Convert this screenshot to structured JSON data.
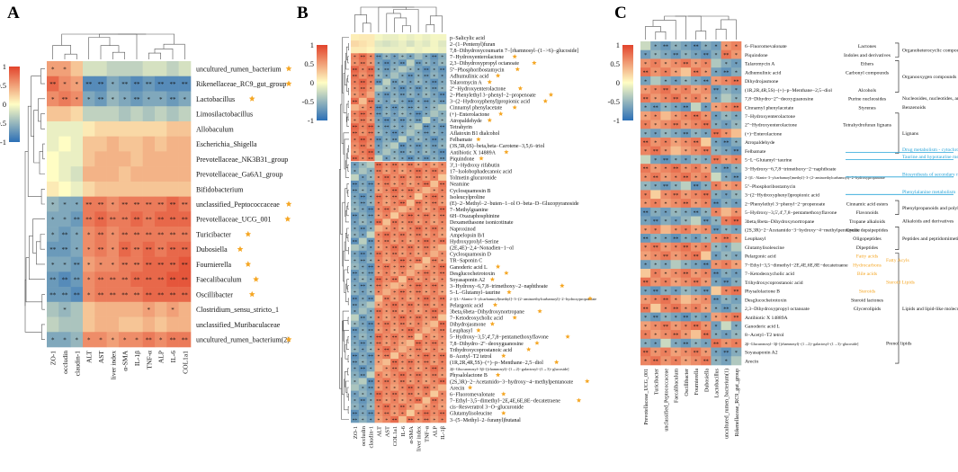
{
  "colors": {
    "low": "#2c6fb6",
    "mid": "#fffdc4",
    "high": "#e2432c",
    "star": "#f5a623",
    "cyan": "#27a3d8",
    "orange": "#f5a623",
    "tree": "#555555",
    "text": "#111111"
  },
  "chart_data": [
    {
      "panel": "A",
      "type": "heatmap",
      "legend_ticks": [
        "1",
        "0.5",
        "0",
        "-0.5",
        "-1"
      ],
      "columns": [
        "ZO-1",
        "occludin",
        "claudin-1",
        "ALT",
        "AST",
        "liver index",
        "α-SMA",
        "IL-1β",
        "TNF-α",
        "ALP",
        "IL-6",
        "COL1a1"
      ],
      "rows": [
        {
          "name": "uncultured_rumen_bacterium",
          "star": true
        },
        {
          "name": "Rikenellaceae_RC9_gut_group",
          "star": true
        },
        {
          "name": "Lactobacillus",
          "star": true
        },
        {
          "name": "Limosilactobacillus",
          "star": false
        },
        {
          "name": "Allobaculum",
          "star": false
        },
        {
          "name": "Escherichia_Shigella",
          "star": false
        },
        {
          "name": "Prevotellaceae_NK3B31_group",
          "star": false
        },
        {
          "name": "Prevotellaceae_Ga6A1_group",
          "star": false
        },
        {
          "name": "Bifidobacterium",
          "star": false
        },
        {
          "name": "unclassified_Peptococcaceae",
          "star": true
        },
        {
          "name": "Prevotellaceae_UCG_001",
          "star": true
        },
        {
          "name": "Turicibacter",
          "star": true
        },
        {
          "name": "Dubosiella",
          "star": true
        },
        {
          "name": "Fournierella",
          "star": true
        },
        {
          "name": "Faecalibaculum",
          "star": true
        },
        {
          "name": "Oscillibacter",
          "star": true
        },
        {
          "name": "Clostridium_sensu_stricto_1",
          "star": false
        },
        {
          "name": "unclassified_Muribaculaceae",
          "star": false
        },
        {
          "name": "uncultured_rumen_bacterium(2)",
          "star": true
        }
      ],
      "values": [
        [
          0.5,
          0.5,
          0.3,
          -0.2,
          -0.2,
          -0.3,
          -0.3,
          -0.3,
          -0.2,
          -0.2,
          -0.3,
          -0.2
        ],
        [
          0.8,
          0.6,
          0.5,
          -0.8,
          -0.8,
          -0.6,
          -0.7,
          -0.8,
          -0.7,
          -0.8,
          -0.8,
          -0.8
        ],
        [
          0.6,
          0.7,
          0.6,
          -0.6,
          -0.7,
          -0.5,
          -0.6,
          -0.7,
          -0.6,
          -0.6,
          -0.7,
          -0.6
        ],
        [
          0.3,
          0.3,
          0.2,
          -0.3,
          -0.3,
          -0.3,
          -0.4,
          -0.3,
          -0.4,
          -0.3,
          -0.4,
          -0.3
        ],
        [
          -0.1,
          -0.1,
          -0.1,
          0.1,
          0.2,
          0.2,
          0.2,
          0.2,
          0.2,
          0.2,
          0.3,
          0.3
        ],
        [
          -0.1,
          0.0,
          -0.1,
          0.3,
          0.3,
          0.4,
          0.3,
          0.3,
          0.4,
          0.3,
          0.4,
          0.4
        ],
        [
          0.0,
          -0.1,
          -0.1,
          0.3,
          0.4,
          0.4,
          0.4,
          0.3,
          0.4,
          0.4,
          0.4,
          0.4
        ],
        [
          0.0,
          -0.1,
          -0.2,
          0.4,
          0.4,
          0.4,
          0.3,
          0.4,
          0.4,
          0.4,
          0.4,
          0.4
        ],
        [
          0.1,
          0.0,
          -0.1,
          0.2,
          0.3,
          0.3,
          0.3,
          0.3,
          0.3,
          0.3,
          0.3,
          0.3
        ],
        [
          -0.5,
          -0.6,
          -0.6,
          0.7,
          0.7,
          0.6,
          0.7,
          0.7,
          0.7,
          0.7,
          0.8,
          0.7
        ],
        [
          -0.6,
          -0.6,
          -0.7,
          0.7,
          0.8,
          0.7,
          0.7,
          0.8,
          0.7,
          0.8,
          0.8,
          0.8
        ],
        [
          -0.6,
          -0.7,
          -0.6,
          0.6,
          0.7,
          0.6,
          0.7,
          0.7,
          0.7,
          0.7,
          0.7,
          0.7
        ],
        [
          -0.7,
          -0.7,
          -0.6,
          0.6,
          0.7,
          0.6,
          0.8,
          0.7,
          0.8,
          0.7,
          0.8,
          0.8
        ],
        [
          -0.6,
          -0.6,
          -0.7,
          0.5,
          0.6,
          0.6,
          0.7,
          0.7,
          0.8,
          0.8,
          0.8,
          0.9
        ],
        [
          -0.7,
          -0.8,
          -0.7,
          0.6,
          0.7,
          0.7,
          0.7,
          0.8,
          0.8,
          0.8,
          0.9,
          0.9
        ],
        [
          -0.7,
          -0.7,
          -0.8,
          0.6,
          0.7,
          0.7,
          0.7,
          0.7,
          0.8,
          0.8,
          0.8,
          0.8
        ],
        [
          -0.4,
          -0.5,
          -0.4,
          0.3,
          0.4,
          0.4,
          0.4,
          0.4,
          0.5,
          0.4,
          0.5,
          0.4
        ],
        [
          -0.3,
          -0.4,
          -0.4,
          0.3,
          0.4,
          0.4,
          0.3,
          0.3,
          0.4,
          0.3,
          0.4,
          0.4
        ],
        [
          -0.6,
          -0.6,
          -0.5,
          0.6,
          0.6,
          0.5,
          0.6,
          0.6,
          0.7,
          0.6,
          0.7,
          0.7
        ]
      ]
    },
    {
      "panel": "B",
      "type": "heatmap",
      "legend_ticks": [
        "1",
        "0.5",
        "0",
        "-0.5",
        "-1"
      ],
      "columns": [
        "ZO-1",
        "occludin",
        "claudin-1",
        "ALT",
        "AST",
        "COL1a1",
        "IL-6",
        "α-SMA",
        "liver index",
        "TNF-α",
        "ALP",
        "IL-1β"
      ],
      "rows": [
        {
          "name": "p−Salicylic acid",
          "star": false
        },
        {
          "name": "2−(1−Pentenyl)furan",
          "star": false
        },
        {
          "name": "7,8−Dihydroxycoumarin 7−[rhamnosyl−(1−>6)−glucoside]",
          "star": false
        },
        {
          "name": "7−Hydroxyenterolactone",
          "star": true
        },
        {
          "name": "2,3−Dihydroxypropyl octanoate",
          "star": true
        },
        {
          "name": "5''−Phosphoribostamycin",
          "star": true
        },
        {
          "name": "Adhumulinic acid",
          "star": true
        },
        {
          "name": "Talaromycin A",
          "star": true
        },
        {
          "name": "2''−Hydroxyenterolactone",
          "star": true
        },
        {
          "name": "2−Phenylethyl 3−phenyl−2−propenoate",
          "star": true
        },
        {
          "name": "3−(2−Hydroxyphenyl)propionic acid",
          "star": true
        },
        {
          "name": "Cinnamyl phenylacetate",
          "star": true
        },
        {
          "name": "(+)−Enterolactone",
          "star": true
        },
        {
          "name": "Atropaldehyde",
          "star": true
        },
        {
          "name": "Tetrahyrin",
          "star": false
        },
        {
          "name": "Aflatoxin B1 dialcohol",
          "star": false
        },
        {
          "name": "Felbamate",
          "star": true
        },
        {
          "name": "(3S,5R,6S)−beta,beta−Carotene−3,5,6−triol",
          "star": false
        },
        {
          "name": "Antibiotic X 14889A",
          "star": true
        },
        {
          "name": "Piquindone",
          "star": true
        },
        {
          "name": "3',1−Hydroxy rifabutin",
          "star": false
        },
        {
          "name": "17−Isolobophadecanoic acid",
          "star": false
        },
        {
          "name": "Tolmetin glucuronide",
          "star": false
        },
        {
          "name": "Neamine",
          "star": false
        },
        {
          "name": "Cyclosquamosin B",
          "star": false
        },
        {
          "name": "Isoleucylproline",
          "star": false
        },
        {
          "name": "(E)−2−Methyl−2−buten−1−ol O−beta−D−Glucopyranoside",
          "star": false
        },
        {
          "name": "7−Methylguanine",
          "star": false
        },
        {
          "name": "6H−Oxazaphosphinine",
          "star": false
        },
        {
          "name": "Dexamethasone isonicotinate",
          "star": false
        },
        {
          "name": "Naproxinod",
          "star": false
        },
        {
          "name": "Ampelopsin B/I",
          "star": false
        },
        {
          "name": "Hydroxyprolyl−Serine",
          "star": false
        },
        {
          "name": "(2E,4E)−2,4−Nonadien−1−ol",
          "star": false
        },
        {
          "name": "Cyclosquamosin D",
          "star": false
        },
        {
          "name": "TR−Saponin C",
          "star": false
        },
        {
          "name": "Ganoderic acid L",
          "star": true
        },
        {
          "name": "Desglucocheirotoxin",
          "star": true
        },
        {
          "name": "Soyasaponin A2",
          "star": true
        },
        {
          "name": "3−Hydroxy−6,7,8−trimethoxy−2−naphthoate",
          "star": true
        },
        {
          "name": "5−L−Glutamyl−taurine",
          "star": true
        },
        {
          "name": "2−[(L−Alanin−3−ylcarbamoyl)methyl]−3−(2−aminoethylcarbamoyl)−2−hydroxypropanoate",
          "star": true
        },
        {
          "name": "Pelargonic acid",
          "star": true
        },
        {
          "name": "3beta,6beta−Dihydroxynortropane",
          "star": true
        },
        {
          "name": "7−Ketodeoxycholic acid",
          "star": true
        },
        {
          "name": "Dihydrojasmone",
          "star": true
        },
        {
          "name": "Leuphasyl",
          "star": true
        },
        {
          "name": "5−Hydroxy−3,5',4',7,8−pentamethoxyflavone",
          "star": true
        },
        {
          "name": "7,8−Dihydro−2''−deoxyguanosine",
          "star": true
        },
        {
          "name": "Trihydroxycoprostanoic acid",
          "star": true
        },
        {
          "name": "8−Acetyl−T2 tetrol",
          "star": true
        },
        {
          "name": "(1R,2R,4R,5S)−(+)−p−Menthane−2,5−diol",
          "star": true
        },
        {
          "name": "2β−Glucuronosyl−3β−[(rhamnosyl)−(1→2)−galactosyl−(1→3)−glucoside]",
          "star": false
        },
        {
          "name": "Physalolactone B",
          "star": true
        },
        {
          "name": "(2S,3R)−2−Acetamido−3−hydroxy−4−methylpentanoate",
          "star": true
        },
        {
          "name": "Arecin",
          "star": true
        },
        {
          "name": "6−Fluoromevalonate",
          "star": true
        },
        {
          "name": "7−Ethyl−3,5−dimethyl−2E,4E,6E,8E−decatetraene",
          "star": true
        },
        {
          "name": "cis−Resveratrol 3−O−glucuronide",
          "star": false
        },
        {
          "name": "Glutamylisoleucine",
          "star": true
        },
        {
          "name": "3−(5−Methyl−2−furanyl)butanal",
          "star": false
        }
      ]
    },
    {
      "panel": "C",
      "type": "heatmap",
      "legend_ticks": [
        "1",
        "0.5",
        "0",
        "-0.5",
        "-1"
      ],
      "columns": [
        "Prevotellaceae_UCG_001",
        "Turicibacter",
        "unclassified_Peptococcaceae",
        "Faecalibaculum",
        "Oscillibacter",
        "Fournierella",
        "Dubosiella",
        "Lactobacillus",
        "uncultured_rumen_bacterium(1)",
        "Rikenellaceae_RC9_gut_group"
      ],
      "rows": [
        {
          "name": "6−Fluoromevalonate",
          "class": "Lactones"
        },
        {
          "name": "Piquindone",
          "class": "Indoles and derivatives"
        },
        {
          "name": "Talaromycin A",
          "class": "Ethers"
        },
        {
          "name": "Adhumulinic acid",
          "class": "Carbonyl compounds"
        },
        {
          "name": "Dihydrojasmone",
          "class": ""
        },
        {
          "name": "(1R,2R,4R,5S)−(+)−p−Menthane−2,5−diol",
          "class": "Alcohols"
        },
        {
          "name": "7,8−Dihydro−2''−deoxyguanosine",
          "class": "Purine nucleosides"
        },
        {
          "name": "Cinnamyl phenylacetate",
          "class": "Styrenes"
        },
        {
          "name": "7−Hydroxyenterolactone",
          "class": ""
        },
        {
          "name": "2''−Hydroxyenterolactone",
          "class": "Tetrahydrofuran lignans"
        },
        {
          "name": "(+)−Enterolactone",
          "class": ""
        },
        {
          "name": "Atropaldehyde",
          "class": ""
        },
        {
          "name": "Felbamate",
          "class": ""
        },
        {
          "name": "5−L−Glutamyl−taurine",
          "class": ""
        },
        {
          "name": "3−Hydroxy−6,7,8−trimethoxy−2−naphthoate",
          "class": ""
        },
        {
          "name": "2−[(L−Alanin−3−ylcarbamoyl)methyl]−3−(2−aminoethylcarbamoyl)−2−hydroxypropanoate",
          "class": ""
        },
        {
          "name": "5''−Phosphoribostamycin",
          "class": ""
        },
        {
          "name": "3−(2−Hydroxyphenyl)propionic acid",
          "class": ""
        },
        {
          "name": "2−Phenylethyl 3−phenyl−2−propenoate",
          "class": "Cinnamic acid esters"
        },
        {
          "name": "5−Hydroxy−3,5',4',7,8−pentamethoxyflavone",
          "class": "Flavonoids"
        },
        {
          "name": "3beta,6beta−Dihydroxynortropane",
          "class": "Tropane alkaloids"
        },
        {
          "name": "(2S,3R)−2−Acetamido−3−hydroxy−4−methylpentanoate",
          "class": "Cyclic depsipeptides"
        },
        {
          "name": "Leuphasyl",
          "class": "Oligopeptides"
        },
        {
          "name": "Glutamylisoleucine",
          "class": "Dipeptides"
        },
        {
          "name": "Pelargonic acid",
          "class": "Fatty acids"
        },
        {
          "name": "7−Ethyl−3,5−dimethyl−2E,4E,6E,8E−decatetraene",
          "class": "Hydrocarbons"
        },
        {
          "name": "7−Ketodeoxycholic acid",
          "class": "Bile acids"
        },
        {
          "name": "Trihydroxycoprostanoic acid",
          "class": ""
        },
        {
          "name": "Physalolactone B",
          "class": "Steroids"
        },
        {
          "name": "Desglucocheirotoxin",
          "class": "Steroid lactones"
        },
        {
          "name": "2,3−Dihydroxypropyl octanoate",
          "class": "Glycerolipids"
        },
        {
          "name": "Antibiotic X 14889A",
          "class": ""
        },
        {
          "name": "Ganoderic acid L",
          "class": ""
        },
        {
          "name": "8−Acetyl−T2 tetrol",
          "class": ""
        },
        {
          "name": "2β−Glucuronosyl−3β−[(rhamnosyl)−(1→2)−galactosyl−(1→3)−glucoside]",
          "class": ""
        },
        {
          "name": "Soyasaponin A2",
          "class": ""
        },
        {
          "name": "Arecin",
          "class": ""
        }
      ],
      "annotations": {
        "superclass_right": [
          "Organoheterocyclic compounds",
          "Organooxygen compounds",
          "Nucleosides, nucleotides, and analogues",
          "Benzenoids",
          "Lignans",
          "Phenylpropanoids and polyketides",
          "Alkaloids and derivatives",
          "Peptides and peptidomimetics",
          "Lipids and lipid-like molecules"
        ],
        "pathways": [
          "Drug metabolism - cytochrome P450",
          "Taurine and hypotaurine metabolism",
          "Biosynthesis of secondary metabolites",
          "Phenylalanine metabolism"
        ],
        "lipid_groups": [
          "Fatty Acyls",
          "Steroid Lipids"
        ],
        "extra_labels": [
          "Prenol lipids"
        ]
      }
    }
  ],
  "panel_letters": {
    "a": "A",
    "b": "B",
    "c": "C"
  }
}
